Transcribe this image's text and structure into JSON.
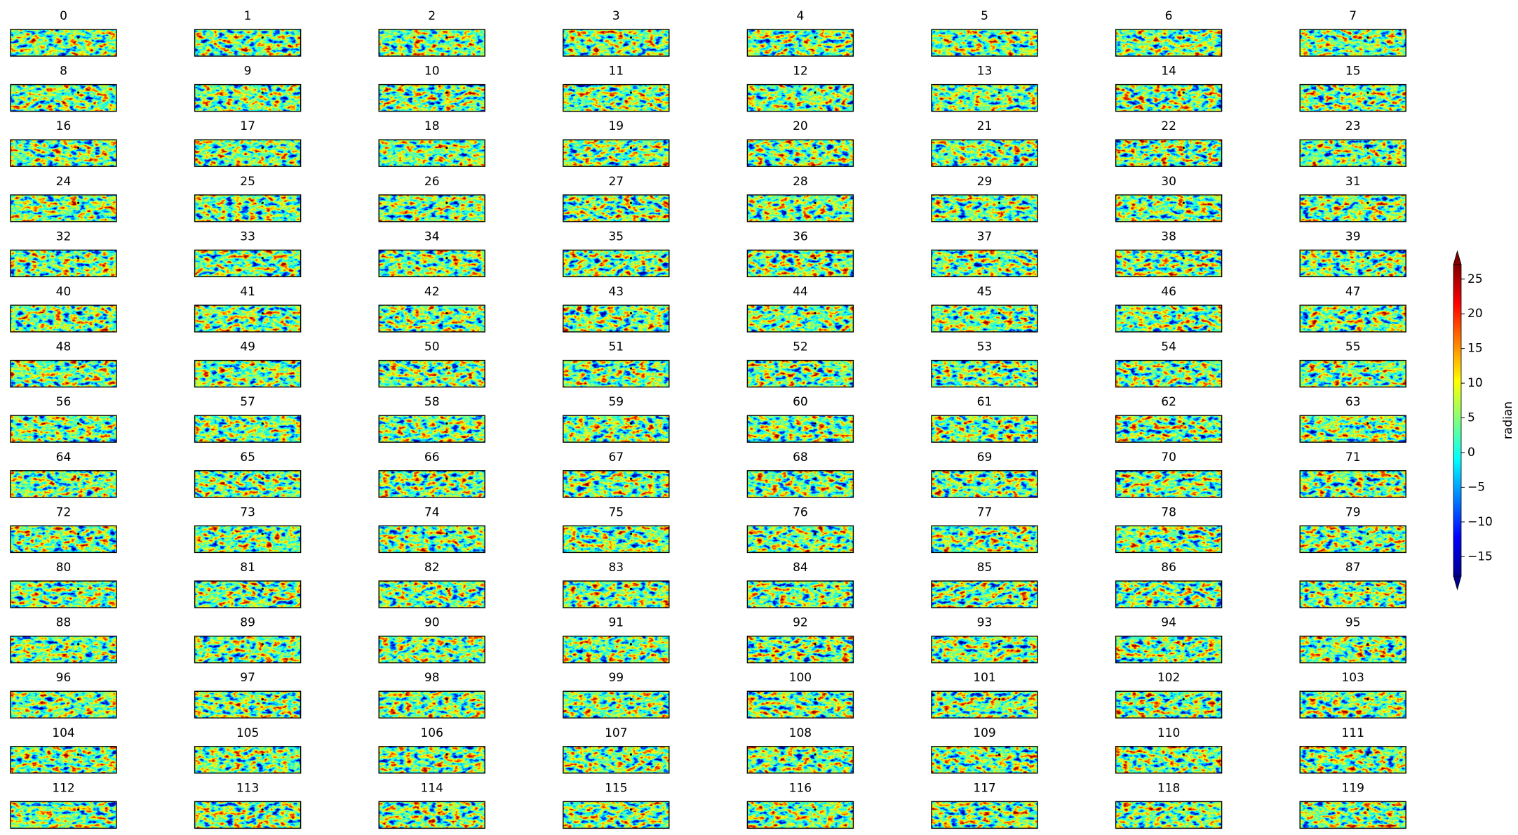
{
  "chart_data": {
    "type": "image_grid",
    "titles": [
      "0",
      "1",
      "2",
      "3",
      "4",
      "5",
      "6",
      "7",
      "8",
      "9",
      "10",
      "11",
      "12",
      "13",
      "14",
      "15",
      "16",
      "17",
      "18",
      "19",
      "20",
      "21",
      "22",
      "23",
      "24",
      "25",
      "26",
      "27",
      "28",
      "29",
      "30",
      "31",
      "32",
      "33",
      "34",
      "35",
      "36",
      "37",
      "38",
      "39",
      "40",
      "41",
      "42",
      "43",
      "44",
      "45",
      "46",
      "47",
      "48",
      "49",
      "50",
      "51",
      "52",
      "53",
      "54",
      "55",
      "56",
      "57",
      "58",
      "59",
      "60",
      "61",
      "62",
      "63",
      "64",
      "65",
      "66",
      "67",
      "68",
      "69",
      "70",
      "71",
      "72",
      "73",
      "74",
      "75",
      "76",
      "77",
      "78",
      "79",
      "80",
      "81",
      "82",
      "83",
      "84",
      "85",
      "86",
      "87",
      "88",
      "89",
      "90",
      "91",
      "92",
      "93",
      "94",
      "95",
      "96",
      "97",
      "98",
      "99",
      "100",
      "101",
      "102",
      "103",
      "104",
      "105",
      "106",
      "107",
      "108",
      "109",
      "110",
      "111",
      "112",
      "113",
      "114",
      "115",
      "116",
      "117",
      "118",
      "119"
    ],
    "colorbar": {
      "label": "radian",
      "colormap": "jet",
      "lim": [
        -17.8,
        27.1
      ],
      "ticks": [
        {
          "value": -15,
          "label": "−15"
        },
        {
          "value": -10,
          "label": "−10"
        },
        {
          "value": -5,
          "label": "−5"
        },
        0,
        5,
        10,
        15,
        20,
        25
      ]
    }
  }
}
